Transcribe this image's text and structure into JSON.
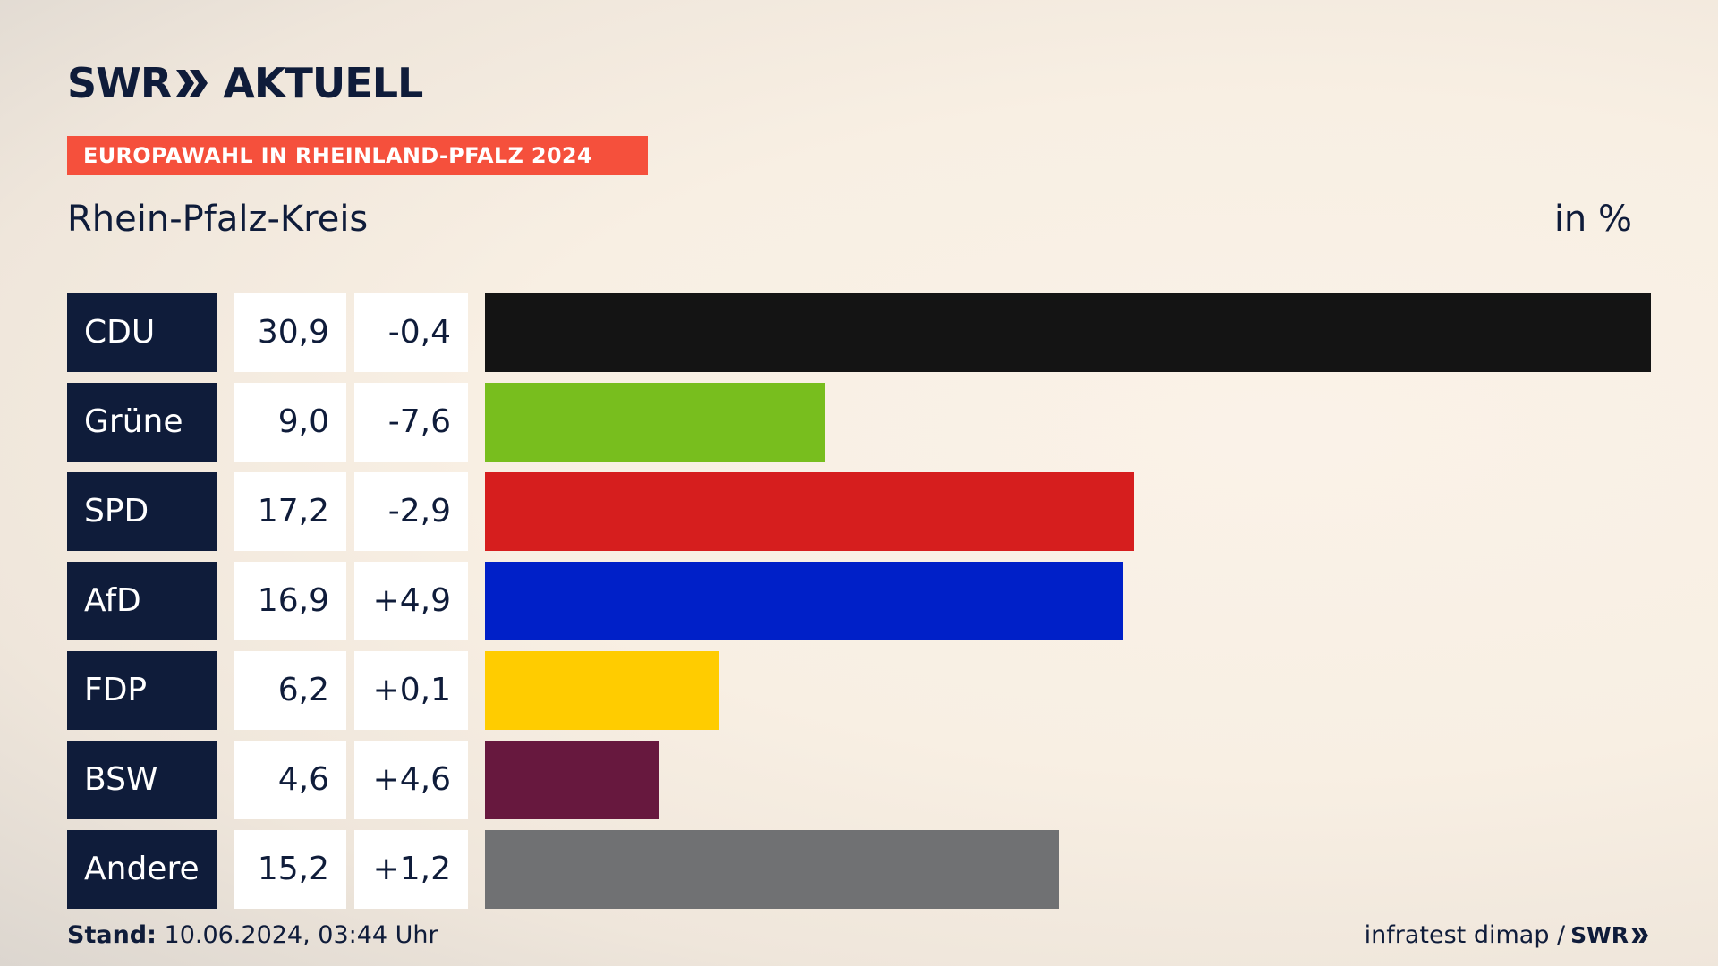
{
  "header": {
    "logo_text_left": "SWR",
    "logo_text_right": "AKTUELL",
    "banner": "EUROPAWAHL IN RHEINLAND-PFALZ 2024",
    "region": "Rhein-Pfalz-Kreis",
    "unit": "in %"
  },
  "footer": {
    "stand_label": "Stand:",
    "stand_value": "10.06.2024, 03:44 Uhr",
    "source": "infratest dimap /",
    "source_logo": "SWR"
  },
  "colors": {
    "navy": "#0f1c3a",
    "banner": "#f5503c"
  },
  "chart_data": {
    "type": "bar",
    "orientation": "horizontal",
    "title": "Rhein-Pfalz-Kreis",
    "unit": "in %",
    "categories": [
      "CDU",
      "Grüne",
      "SPD",
      "AfD",
      "FDP",
      "BSW",
      "Andere"
    ],
    "values": [
      30.9,
      9.0,
      17.2,
      16.9,
      6.2,
      4.6,
      15.2
    ],
    "value_labels": [
      "30,9",
      "9,0",
      "17,2",
      "16,9",
      "6,2",
      "4,6",
      "15,2"
    ],
    "diff_labels": [
      "-0,4",
      "-7,6",
      "-2,9",
      "+4,9",
      "+0,1",
      "+4,6",
      "+1,2"
    ],
    "diffs": [
      -0.4,
      -7.6,
      -2.9,
      4.9,
      0.1,
      4.6,
      1.2
    ],
    "bar_colors": [
      "#141414",
      "#78be1e",
      "#d61e1e",
      "#0020c8",
      "#ffcc00",
      "#67183e",
      "#707173"
    ],
    "xlim": [
      0,
      30.9
    ],
    "grid": false,
    "legend": "none"
  }
}
